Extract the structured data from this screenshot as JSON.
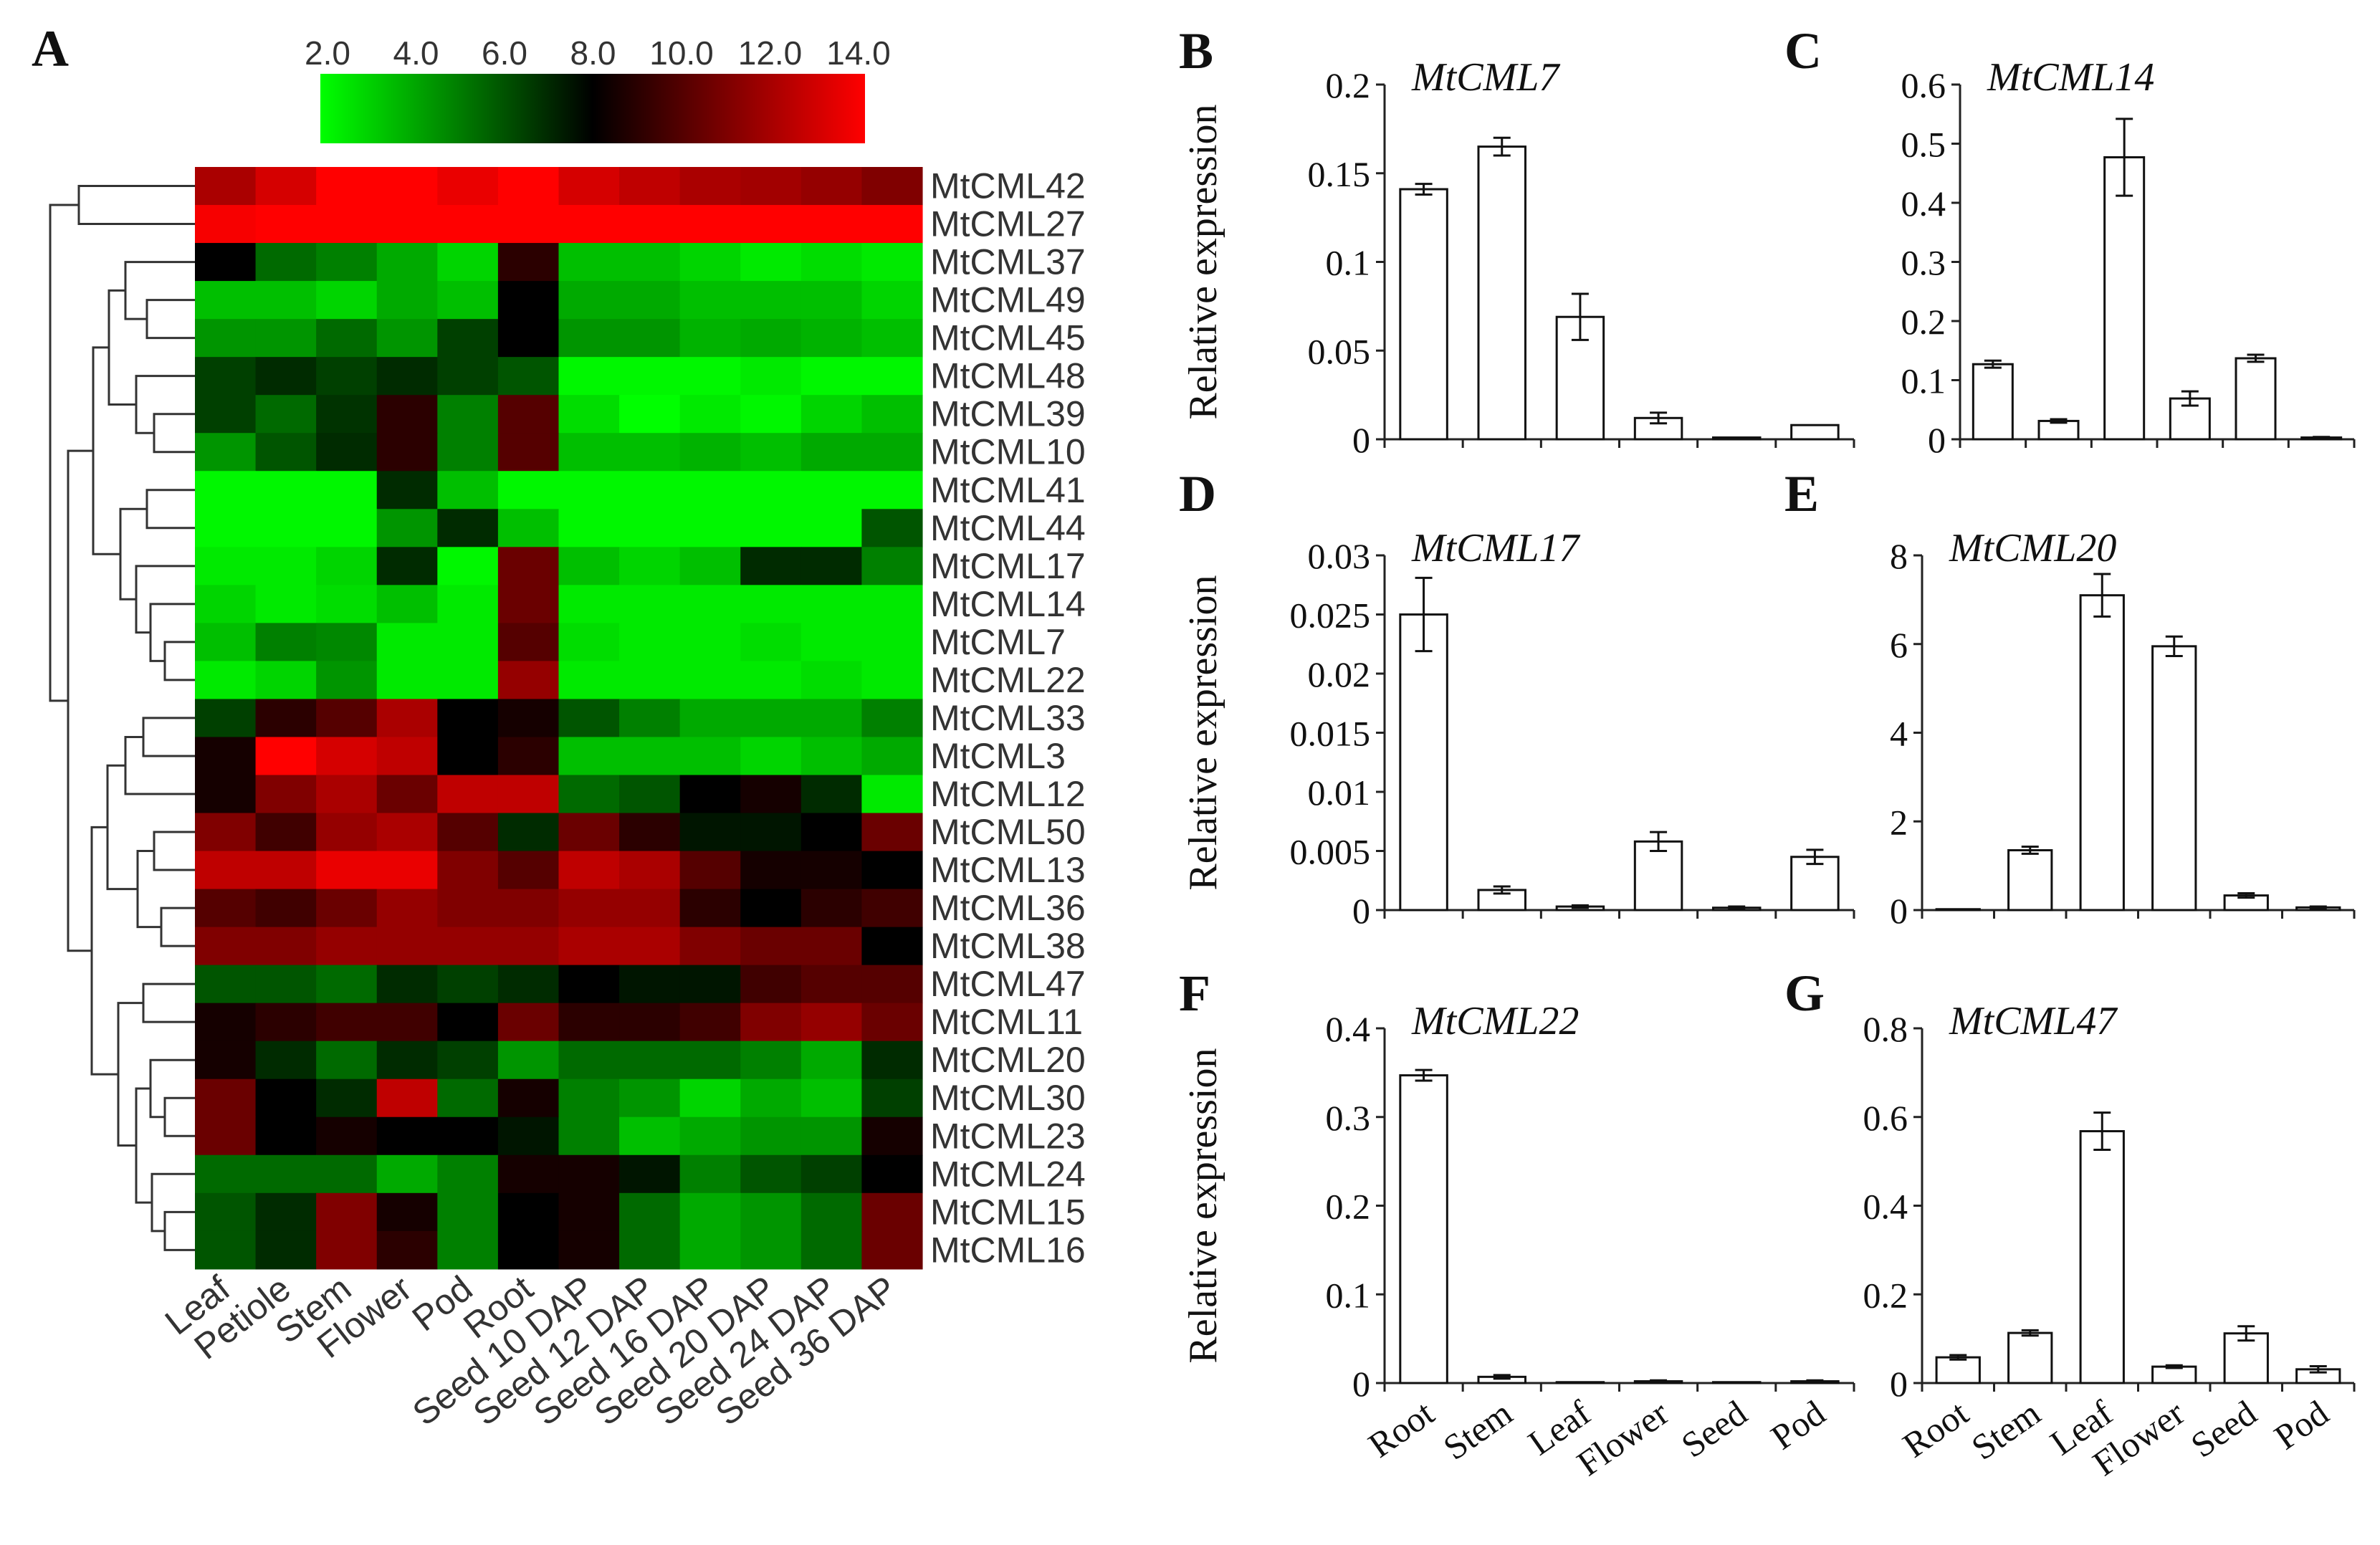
{
  "panel_labels": [
    "A",
    "B",
    "C",
    "D",
    "E",
    "F",
    "G"
  ],
  "chart_data": [
    {
      "type": "heatmap",
      "panel": "A",
      "colorbar": {
        "ticks": [
          "2.0",
          "4.0",
          "6.0",
          "8.0",
          "10.0",
          "12.0",
          "14.0"
        ],
        "min": 2.0,
        "mid": 8.0,
        "max": 14.0,
        "colors": {
          "low": "#00ff00",
          "mid": "#000000",
          "high": "#ff0000"
        }
      },
      "columns": [
        "Leaf",
        "Petiole",
        "Stem",
        "Flower",
        "Pod",
        "Root",
        "Seed 10 DAP",
        "Seed 12 DAP",
        "Seed 16 DAP",
        "Seed 20 DAP",
        "Seed 24 DAP",
        "Seed 36 DAP"
      ],
      "rows": [
        "MtCML42",
        "MtCML27",
        "MtCML37",
        "MtCML49",
        "MtCML45",
        "MtCML48",
        "MtCML39",
        "MtCML10",
        "MtCML41",
        "MtCML44",
        "MtCML17",
        "MtCML14",
        "MtCML7",
        "MtCML22",
        "MtCML33",
        "MtCML3",
        "MtCML12",
        "MtCML50",
        "MtCML13",
        "MtCML36",
        "MtCML38",
        "MtCML47",
        "MtCML11",
        "MtCML20",
        "MtCML30",
        "MtCML23",
        "MtCML24",
        "MtCML15",
        "MtCML16"
      ],
      "values": [
        [
          12.0,
          13.0,
          14.0,
          14.0,
          13.5,
          14.0,
          13.0,
          12.5,
          12.0,
          11.8,
          11.5,
          11.0
        ],
        [
          13.8,
          14.0,
          14.0,
          14.0,
          14.0,
          14.0,
          14.0,
          14.0,
          14.0,
          14.0,
          14.0,
          14.0
        ],
        [
          8.0,
          5.5,
          5.0,
          4.0,
          3.0,
          9.0,
          3.5,
          3.5,
          3.0,
          2.5,
          2.8,
          2.5
        ],
        [
          3.5,
          3.5,
          3.0,
          4.0,
          3.5,
          8.0,
          4.0,
          4.0,
          3.5,
          3.5,
          3.5,
          3.0
        ],
        [
          4.5,
          4.5,
          5.5,
          4.5,
          6.5,
          8.0,
          4.5,
          4.5,
          3.8,
          4.0,
          3.8,
          3.5
        ],
        [
          6.5,
          7.0,
          6.5,
          7.0,
          6.5,
          6.0,
          2.2,
          2.2,
          2.2,
          2.5,
          2.2,
          2.2
        ],
        [
          6.5,
          5.5,
          6.8,
          9.0,
          5.0,
          10.0,
          2.8,
          2.0,
          2.5,
          2.2,
          3.0,
          3.5
        ],
        [
          4.5,
          6.0,
          7.0,
          9.0,
          5.0,
          10.0,
          3.5,
          3.5,
          3.8,
          3.5,
          4.0,
          4.0
        ],
        [
          2.2,
          2.2,
          2.2,
          7.0,
          3.5,
          2.2,
          2.2,
          2.2,
          2.2,
          2.2,
          2.2,
          2.2
        ],
        [
          2.2,
          2.2,
          2.2,
          4.5,
          7.0,
          3.5,
          2.2,
          2.2,
          2.2,
          2.2,
          2.2,
          6.0
        ],
        [
          2.5,
          2.5,
          3.0,
          7.0,
          2.2,
          10.5,
          3.5,
          3.0,
          3.5,
          7.0,
          7.0,
          5.0
        ],
        [
          3.0,
          2.5,
          2.8,
          3.5,
          2.5,
          10.5,
          2.5,
          2.5,
          2.5,
          2.5,
          2.5,
          2.5
        ],
        [
          3.5,
          5.0,
          4.8,
          2.5,
          2.5,
          10.0,
          2.8,
          2.5,
          2.5,
          2.8,
          2.5,
          2.5
        ],
        [
          2.5,
          3.0,
          4.5,
          2.5,
          2.5,
          11.5,
          2.5,
          2.5,
          2.5,
          2.5,
          2.8,
          2.5
        ],
        [
          6.5,
          9.0,
          10.0,
          12.0,
          8.0,
          8.5,
          6.0,
          5.0,
          4.0,
          4.0,
          4.0,
          5.0
        ],
        [
          8.5,
          14.0,
          13.0,
          12.5,
          8.0,
          9.0,
          3.5,
          3.5,
          3.5,
          3.0,
          3.5,
          4.0
        ],
        [
          8.5,
          11.0,
          12.0,
          10.5,
          12.5,
          12.5,
          5.5,
          6.0,
          8.0,
          8.5,
          7.0,
          2.5
        ],
        [
          11.0,
          9.5,
          11.5,
          12.0,
          10.0,
          7.0,
          10.5,
          9.0,
          7.5,
          7.5,
          8.0,
          10.5
        ],
        [
          12.5,
          12.5,
          13.5,
          13.5,
          11.0,
          10.0,
          12.5,
          12.0,
          10.0,
          8.5,
          8.5,
          8.0
        ],
        [
          10.0,
          9.5,
          10.5,
          11.5,
          11.0,
          11.0,
          11.5,
          11.5,
          9.0,
          8.0,
          9.0,
          9.5
        ],
        [
          11.0,
          11.0,
          11.5,
          11.5,
          11.5,
          11.5,
          12.0,
          12.0,
          11.0,
          10.5,
          10.5,
          8.0
        ],
        [
          6.0,
          6.0,
          5.5,
          7.0,
          6.5,
          7.0,
          8.0,
          7.5,
          7.5,
          9.5,
          10.0,
          10.0
        ],
        [
          8.5,
          9.0,
          9.5,
          9.5,
          8.0,
          10.5,
          9.0,
          9.0,
          9.5,
          11.0,
          11.5,
          10.5
        ],
        [
          8.5,
          7.0,
          5.5,
          7.0,
          6.5,
          4.5,
          5.5,
          5.5,
          5.5,
          5.0,
          4.0,
          7.0
        ],
        [
          10.5,
          8.0,
          7.0,
          12.5,
          5.5,
          8.5,
          5.0,
          4.5,
          3.0,
          4.0,
          3.5,
          6.5
        ],
        [
          10.5,
          8.0,
          8.5,
          8.0,
          8.0,
          7.5,
          5.0,
          3.5,
          4.0,
          4.5,
          4.5,
          8.5
        ],
        [
          5.5,
          5.5,
          5.5,
          4.0,
          5.0,
          8.5,
          8.5,
          7.5,
          5.0,
          6.0,
          6.5,
          8.0
        ],
        [
          6.0,
          7.0,
          11.0,
          8.5,
          5.0,
          8.0,
          8.5,
          5.5,
          4.0,
          4.5,
          5.5,
          10.5
        ],
        [
          6.0,
          7.0,
          11.0,
          9.0,
          5.0,
          8.0,
          8.5,
          5.5,
          4.0,
          4.5,
          5.5,
          10.5
        ]
      ]
    },
    {
      "type": "bar",
      "panel": "B",
      "title": "MtCML7",
      "ylabel": "Relative expression",
      "categories": [
        "Root",
        "Stem",
        "Leaf",
        "Flower",
        "Seed",
        "Pod"
      ],
      "values": [
        0.141,
        0.165,
        0.069,
        0.012,
        0.001,
        0.008
      ],
      "errors": [
        0.003,
        0.005,
        0.013,
        0.003,
        0.0,
        0.0
      ],
      "ylim": [
        0,
        0.2
      ],
      "ytick_labels": [
        "0",
        "0.05",
        "0.1",
        "0.15",
        "0.2"
      ],
      "show_xlabels": false
    },
    {
      "type": "bar",
      "panel": "C",
      "title": "MtCML14",
      "ylabel": "",
      "categories": [
        "Root",
        "Stem",
        "Leaf",
        "Flower",
        "Seed",
        "Pod"
      ],
      "values": [
        0.127,
        0.031,
        0.477,
        0.069,
        0.137,
        0.003
      ],
      "errors": [
        0.006,
        0.003,
        0.065,
        0.012,
        0.006,
        0.001
      ],
      "ylim": [
        0,
        0.6
      ],
      "ytick_labels": [
        "0",
        "0.1",
        "0.2",
        "0.3",
        "0.4",
        "0.5",
        "0.6"
      ],
      "show_xlabels": false
    },
    {
      "type": "bar",
      "panel": "D",
      "title": "MtCML17",
      "ylabel": "Relative expression",
      "categories": [
        "Root",
        "Stem",
        "Leaf",
        "Flower",
        "Seed",
        "Pod"
      ],
      "values": [
        0.025,
        0.0017,
        0.0003,
        0.0058,
        0.0002,
        0.0045
      ],
      "errors": [
        0.0031,
        0.0003,
        0.0001,
        0.0008,
        0.0001,
        0.0006
      ],
      "ylim": [
        0,
        0.03
      ],
      "ytick_labels": [
        "0",
        "0.005",
        "0.01",
        "0.015",
        "0.02",
        "0.025",
        "0.03"
      ],
      "show_xlabels": false
    },
    {
      "type": "bar",
      "panel": "E",
      "title": "MtCML20",
      "ylabel": "",
      "categories": [
        "Root",
        "Stem",
        "Leaf",
        "Flower",
        "Seed",
        "Pod"
      ],
      "values": [
        0.02,
        1.35,
        7.1,
        5.95,
        0.33,
        0.06
      ],
      "errors": [
        0.0,
        0.08,
        0.48,
        0.22,
        0.05,
        0.02
      ],
      "ylim": [
        0,
        8
      ],
      "ytick_labels": [
        "0",
        "2",
        "4",
        "6",
        "8"
      ],
      "show_xlabels": false
    },
    {
      "type": "bar",
      "panel": "F",
      "title": "MtCML22",
      "ylabel": "Relative expression",
      "categories": [
        "Root",
        "Stem",
        "Leaf",
        "Flower",
        "Seed",
        "Pod"
      ],
      "values": [
        0.347,
        0.007,
        0.001,
        0.002,
        0.001,
        0.002
      ],
      "errors": [
        0.006,
        0.002,
        0.0,
        0.001,
        0.0,
        0.001
      ],
      "ylim": [
        0,
        0.4
      ],
      "ytick_labels": [
        "0",
        "0.1",
        "0.2",
        "0.3",
        "0.4"
      ],
      "show_xlabels": true
    },
    {
      "type": "bar",
      "panel": "G",
      "title": "MtCML47",
      "ylabel": "",
      "categories": [
        "Root",
        "Stem",
        "Leaf",
        "Flower",
        "Seed",
        "Pod"
      ],
      "values": [
        0.058,
        0.113,
        0.568,
        0.037,
        0.112,
        0.031
      ],
      "errors": [
        0.005,
        0.006,
        0.042,
        0.003,
        0.016,
        0.007
      ],
      "ylim": [
        0,
        0.8
      ],
      "ytick_labels": [
        "0",
        "0.2",
        "0.4",
        "0.6",
        "0.8"
      ],
      "show_xlabels": true
    }
  ]
}
